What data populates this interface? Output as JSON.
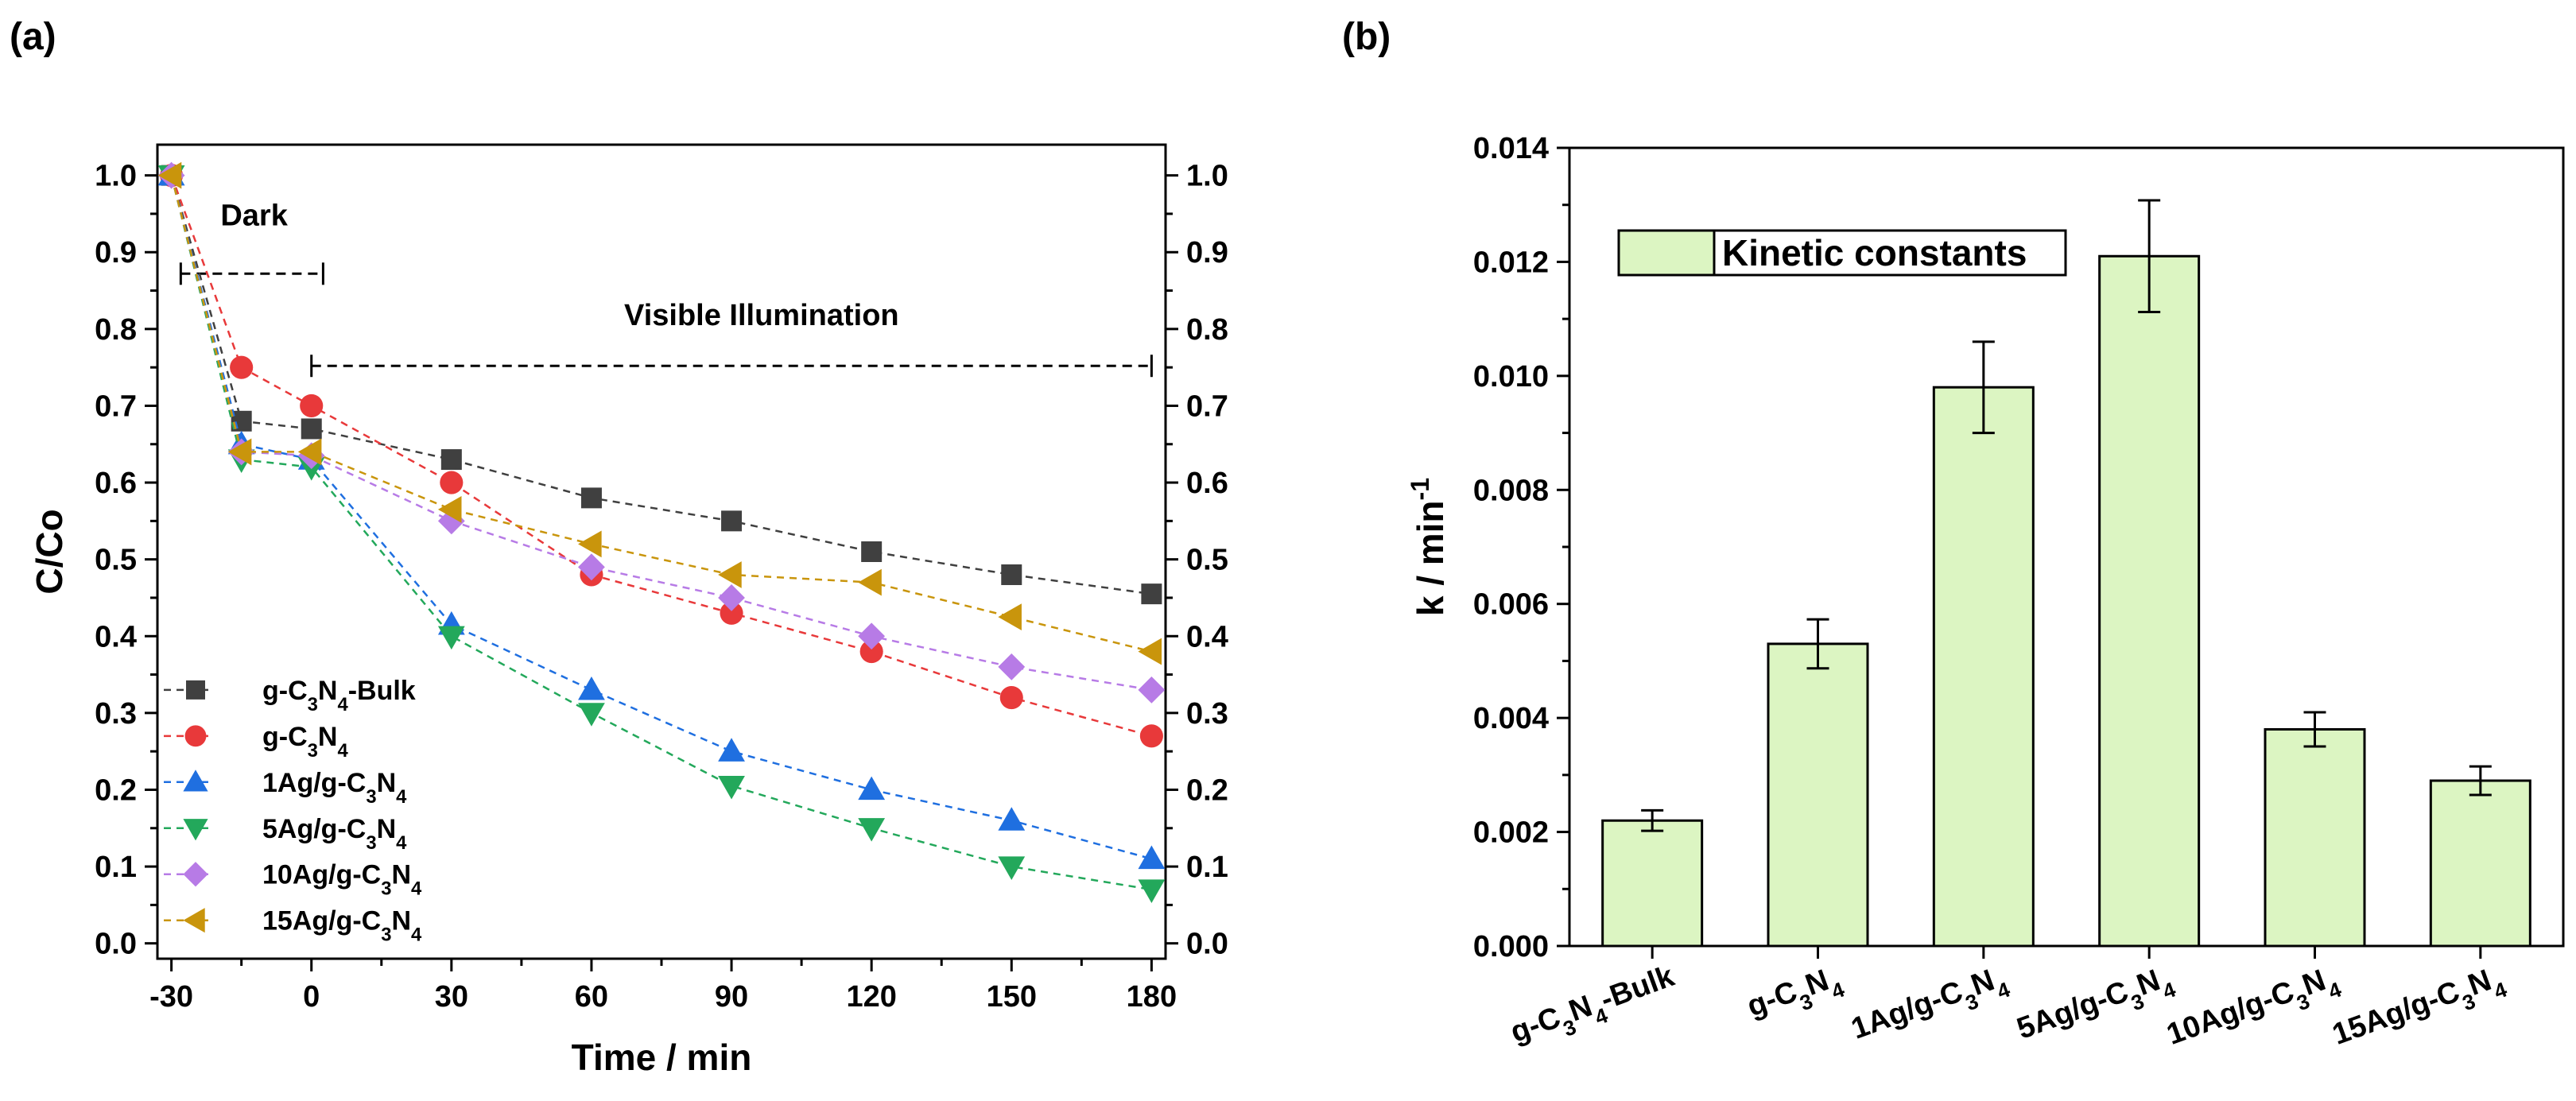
{
  "chart_data": [
    {
      "panel": "(a)",
      "type": "line",
      "xlabel": "Time / min",
      "ylabel": "C/Co",
      "xlim": [
        -33,
        183
      ],
      "ylim": [
        -0.02,
        1.04
      ],
      "xticks": [
        -30,
        0,
        30,
        60,
        90,
        120,
        150,
        180
      ],
      "xtick_labels": [
        "-30",
        "0",
        "30",
        "60",
        "90",
        "120",
        "150",
        "180"
      ],
      "yticks": [
        0,
        0.1,
        0.2,
        0.3,
        0.4,
        0.5,
        0.6,
        0.7,
        0.8,
        0.9,
        1.0
      ],
      "ytick_labels": [
        "0.0",
        "0.1",
        "0.2",
        "0.3",
        "0.4",
        "0.5",
        "0.6",
        "0.7",
        "0.8",
        "0.9",
        "1.0"
      ],
      "x": [
        -30,
        -15,
        0,
        30,
        60,
        90,
        120,
        150,
        180
      ],
      "annotations": {
        "dark": {
          "label": "Dark",
          "x_start": -28,
          "x_end": 2.5,
          "y": 0.872
        },
        "visible": {
          "label": "Visible Illumination",
          "x_start": 0,
          "x_end": 180,
          "y": 0.752
        }
      },
      "series": [
        {
          "name": "g-C3N4-Bulk",
          "parts": [
            [
              "g-C",
              "n"
            ],
            [
              "3",
              "sub"
            ],
            [
              "N",
              "n"
            ],
            [
              "4",
              "sub"
            ],
            [
              "-Bulk",
              "n"
            ]
          ],
          "color": "#404040",
          "marker": "square",
          "values": [
            1.0,
            0.68,
            0.67,
            0.63,
            0.58,
            0.55,
            0.51,
            0.48,
            0.455
          ]
        },
        {
          "name": "g-C3N4",
          "parts": [
            [
              "g-C",
              "n"
            ],
            [
              "3",
              "sub"
            ],
            [
              "N",
              "n"
            ],
            [
              "4",
              "sub"
            ]
          ],
          "color": "#e8393a",
          "marker": "circle",
          "values": [
            1.0,
            0.75,
            0.7,
            0.6,
            0.48,
            0.43,
            0.38,
            0.32,
            0.27
          ]
        },
        {
          "name": "1Ag/g-C3N4",
          "parts": [
            [
              "1Ag/g-C",
              "n"
            ],
            [
              "3",
              "sub"
            ],
            [
              "N",
              "n"
            ],
            [
              "4",
              "sub"
            ]
          ],
          "color": "#1f6fe0",
          "marker": "triangle-up",
          "values": [
            1.0,
            0.65,
            0.63,
            0.415,
            0.33,
            0.25,
            0.2,
            0.16,
            0.11
          ]
        },
        {
          "name": "5Ag/g-C3N4",
          "parts": [
            [
              "5Ag/g-C",
              "n"
            ],
            [
              "3",
              "sub"
            ],
            [
              "N",
              "n"
            ],
            [
              "4",
              "sub"
            ]
          ],
          "color": "#23a85b",
          "marker": "triangle-down",
          "values": [
            1.0,
            0.63,
            0.62,
            0.4,
            0.3,
            0.205,
            0.15,
            0.1,
            0.07
          ]
        },
        {
          "name": "10Ag/g-C3N4",
          "parts": [
            [
              "10Ag/g-C",
              "n"
            ],
            [
              "3",
              "sub"
            ],
            [
              "N",
              "n"
            ],
            [
              "4",
              "sub"
            ]
          ],
          "color": "#b77be6",
          "marker": "diamond",
          "values": [
            1.0,
            0.64,
            0.635,
            0.55,
            0.49,
            0.45,
            0.4,
            0.36,
            0.33
          ]
        },
        {
          "name": "15Ag/g-C3N4",
          "parts": [
            [
              "15Ag/g-C",
              "n"
            ],
            [
              "3",
              "sub"
            ],
            [
              "N",
              "n"
            ],
            [
              "4",
              "sub"
            ]
          ],
          "color": "#c9950c",
          "marker": "triangle-left",
          "values": [
            1.0,
            0.64,
            0.64,
            0.565,
            0.52,
            0.48,
            0.47,
            0.425,
            0.38
          ]
        }
      ]
    },
    {
      "panel": "(b)",
      "type": "bar",
      "xlabel": "",
      "ylabel_parts": [
        [
          "k / min",
          "n"
        ],
        [
          "-1",
          "sup"
        ]
      ],
      "ylim": [
        0,
        0.014
      ],
      "yticks": [
        0,
        0.002,
        0.004,
        0.006,
        0.008,
        0.01,
        0.012,
        0.014
      ],
      "ytick_labels": [
        "0.000",
        "0.002",
        "0.004",
        "0.006",
        "0.008",
        "0.010",
        "0.012",
        "0.014"
      ],
      "legend": "Kinetic constants",
      "bar_color": "#dcf5c2",
      "categories": [
        "g-C3N4-Bulk",
        "g-C3N4",
        "1Ag/g-C3N4",
        "5Ag/g-C3N4",
        "10Ag/g-C3N4",
        "15Ag/g-C3N4"
      ],
      "category_parts": [
        [
          [
            "g-C",
            "n"
          ],
          [
            "3",
            "sub"
          ],
          [
            "N",
            "n"
          ],
          [
            "4",
            "sub"
          ],
          [
            "-Bulk",
            "n"
          ]
        ],
        [
          [
            "g-C",
            "n"
          ],
          [
            "3",
            "sub"
          ],
          [
            "N",
            "n"
          ],
          [
            "4",
            "sub"
          ]
        ],
        [
          [
            "1Ag/g-C",
            "n"
          ],
          [
            "3",
            "sub"
          ],
          [
            "N",
            "n"
          ],
          [
            "4",
            "sub"
          ]
        ],
        [
          [
            "5Ag/g-C",
            "n"
          ],
          [
            "3",
            "sub"
          ],
          [
            "N",
            "n"
          ],
          [
            "4",
            "sub"
          ]
        ],
        [
          [
            "10Ag/g-C",
            "n"
          ],
          [
            "3",
            "sub"
          ],
          [
            "N",
            "n"
          ],
          [
            "4",
            "sub"
          ]
        ],
        [
          [
            "15Ag/g-C",
            "n"
          ],
          [
            "3",
            "sub"
          ],
          [
            "N",
            "n"
          ],
          [
            "4",
            "sub"
          ]
        ]
      ],
      "values": [
        0.0022,
        0.0053,
        0.0098,
        0.0121,
        0.0038,
        0.0029
      ],
      "errors": [
        0.00018,
        0.00043,
        0.0008,
        0.00098,
        0.0003,
        0.00025
      ]
    }
  ]
}
